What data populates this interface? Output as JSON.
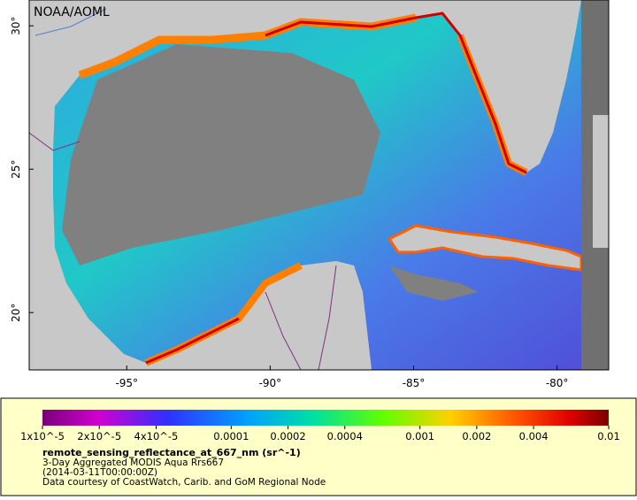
{
  "map": {
    "credit": "NOAA/AOML",
    "lonlim": [
      -98.4,
      -78.2
    ],
    "latlim": [
      18,
      30.9
    ],
    "lon_ticks": [
      {
        "value": -95,
        "label": "-95°"
      },
      {
        "value": -90,
        "label": "-90°"
      },
      {
        "value": -85,
        "label": "-85°"
      },
      {
        "value": -80,
        "label": "-80°"
      }
    ],
    "lat_ticks": [
      {
        "value": 20,
        "label": "20°"
      },
      {
        "value": 25,
        "label": "25°"
      },
      {
        "value": 30,
        "label": "30°"
      }
    ]
  },
  "colorbar": {
    "range": [
      1e-05,
      0.01
    ],
    "log": true,
    "ticks": [
      {
        "value": 1e-05,
        "label": "1x10^-5"
      },
      {
        "value": 2e-05,
        "label": "2x10^-5"
      },
      {
        "value": 4e-05,
        "label": "4x10^-5"
      },
      {
        "value": 0.0001,
        "label": "0.0001"
      },
      {
        "value": 0.0002,
        "label": "0.0002"
      },
      {
        "value": 0.0004,
        "label": "0.0004"
      },
      {
        "value": 0.001,
        "label": "0.001"
      },
      {
        "value": 0.002,
        "label": "0.002"
      },
      {
        "value": 0.004,
        "label": "0.004"
      },
      {
        "value": 0.01,
        "label": "0.01"
      }
    ]
  },
  "caption": {
    "title": "remote_sensing_reflectance_at_667_nm (sr^-1)",
    "lines": [
      "3-Day Aggregated MODIS Aqua Rrs667",
      "(2014-03-11T00:00:00Z)",
      "Data courtesy of CoastWatch, Carib. and GoM Regional Node"
    ]
  }
}
